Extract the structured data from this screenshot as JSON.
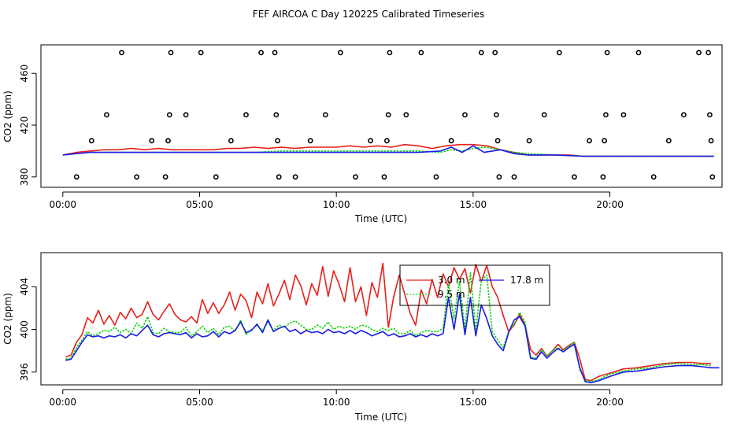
{
  "figure": {
    "title": "FEF AIRCOA C  Day 120225  Calibrated Timeseries"
  },
  "colors": {
    "red": "#e8201a",
    "green": "#0fd40f",
    "blue": "#1a1ae6",
    "axis": "#000000"
  },
  "chart_data": [
    {
      "type": "line",
      "id": "top",
      "title": "",
      "xlabel": "Time (UTC)",
      "ylabel": "CO2 (ppm)",
      "xlim": [
        -0.8,
        24.1
      ],
      "ylim": [
        372,
        482
      ],
      "xticks": [
        0,
        5,
        10,
        15,
        20
      ],
      "xtick_labels": [
        "00:00",
        "05:00",
        "10:00",
        "15:00",
        "20:00"
      ],
      "yticks": [
        380,
        420,
        460
      ],
      "ytick_labels": [
        "380",
        "420",
        "460"
      ],
      "series": [
        {
          "name": "red",
          "color": "red",
          "x": [
            0,
            0.5,
            1,
            1.5,
            2,
            2.5,
            3,
            3.5,
            4,
            4.5,
            5,
            5.5,
            6,
            6.5,
            7,
            7.5,
            8,
            8.5,
            9,
            9.5,
            10,
            10.5,
            11,
            11.5,
            12,
            12.5,
            13,
            13.5,
            14,
            14.5,
            15,
            15.5,
            16,
            16.5,
            17,
            17.5,
            18,
            18.5,
            19,
            19.5,
            20,
            21,
            22,
            23,
            23.8
          ],
          "y": [
            397,
            399,
            400,
            401,
            401,
            402,
            401,
            402,
            401,
            401,
            401,
            401,
            402,
            402,
            403,
            402,
            403,
            402,
            403,
            403,
            403,
            404,
            403,
            404,
            403,
            405,
            404,
            402,
            404,
            405,
            405,
            404,
            401,
            399,
            397,
            397,
            397,
            397,
            396,
            396,
            396,
            396,
            396,
            396,
            396
          ]
        },
        {
          "name": "green",
          "color": "green",
          "x": [
            0,
            0.5,
            1,
            2,
            3,
            4,
            5,
            6,
            7,
            8,
            9,
            10,
            11,
            12,
            13,
            13.8,
            14.2,
            14.6,
            15,
            15.4,
            16,
            16.5,
            17,
            18,
            19,
            20,
            21,
            22,
            23,
            23.8
          ],
          "y": [
            397,
            398,
            399,
            399,
            399,
            399,
            399,
            399,
            399,
            400,
            400,
            400,
            400,
            400,
            400,
            399,
            401,
            400,
            402,
            403,
            401,
            399,
            398,
            397,
            396,
            396,
            396,
            396,
            396,
            396
          ]
        },
        {
          "name": "blue",
          "color": "blue",
          "x": [
            0,
            0.5,
            1,
            2,
            3,
            4,
            5,
            6,
            7,
            8,
            9,
            10,
            11,
            12,
            13,
            13.8,
            14.2,
            14.6,
            15,
            15.4,
            16,
            16.5,
            17,
            18,
            19,
            20,
            21,
            22,
            23,
            23.8
          ],
          "y": [
            397,
            398,
            399,
            399,
            399,
            399,
            399,
            399,
            399,
            399,
            399,
            399,
            399,
            399,
            399,
            400,
            403,
            399,
            404,
            399,
            401,
            398,
            397,
            397,
            396,
            396,
            396,
            396,
            396,
            396
          ]
        }
      ],
      "scatter": {
        "name": "calibration points",
        "x": [
          0.5,
          1.05,
          1.6,
          2.15,
          2.7,
          3.25,
          3.75,
          3.85,
          3.9,
          3.95,
          4.5,
          5.05,
          5.6,
          6.15,
          6.7,
          7.25,
          7.75,
          7.8,
          7.85,
          7.9,
          8.5,
          9.05,
          9.6,
          10.15,
          10.7,
          11.25,
          11.75,
          11.85,
          11.9,
          11.95,
          12.55,
          13.1,
          13.65,
          14.2,
          14.7,
          15.3,
          15.8,
          15.85,
          15.9,
          15.95,
          16.5,
          17.05,
          17.6,
          18.15,
          18.7,
          19.25,
          19.75,
          19.8,
          19.85,
          19.9,
          20.5,
          21.05,
          21.6,
          22.15,
          22.7,
          23.25,
          23.6,
          23.65,
          23.7,
          23.75
        ],
        "y": [
          380,
          408,
          428,
          476,
          380,
          408,
          380,
          408,
          428,
          476,
          428,
          476,
          380,
          408,
          428,
          476,
          476,
          428,
          408,
          380,
          380,
          408,
          428,
          476,
          380,
          408,
          380,
          408,
          428,
          476,
          428,
          476,
          380,
          408,
          428,
          476,
          476,
          428,
          408,
          380,
          380,
          408,
          428,
          476,
          380,
          408,
          380,
          408,
          428,
          476,
          428,
          476,
          380,
          408,
          428,
          476,
          476,
          428,
          408,
          380
        ]
      }
    },
    {
      "type": "line",
      "id": "bottom",
      "title": "",
      "xlabel": "Time (UTC)",
      "ylabel": "CO2 (ppm)",
      "xlim": [
        -0.8,
        24.1
      ],
      "ylim": [
        394.8,
        407.2
      ],
      "xticks": [
        0,
        5,
        10,
        15,
        20
      ],
      "xtick_labels": [
        "00:00",
        "05:00",
        "10:00",
        "15:00",
        "20:00"
      ],
      "yticks": [
        396,
        400,
        404
      ],
      "ytick_labels": [
        "396",
        "400",
        "404"
      ],
      "legend": {
        "position": "top-right",
        "entries": [
          {
            "label": "3.0 m",
            "color": "red"
          },
          {
            "label": "9.5 m",
            "color": "green"
          },
          {
            "label": "17.8 m",
            "color": "blue"
          }
        ]
      },
      "series": [
        {
          "name": "3.0 m",
          "color": "red",
          "x": [
            0.1,
            0.3,
            0.5,
            0.7,
            0.9,
            1.1,
            1.3,
            1.5,
            1.7,
            1.9,
            2.1,
            2.3,
            2.5,
            2.7,
            2.9,
            3.1,
            3.3,
            3.5,
            3.7,
            3.9,
            4.1,
            4.3,
            4.5,
            4.7,
            4.9,
            5.1,
            5.3,
            5.5,
            5.7,
            5.9,
            6.1,
            6.3,
            6.5,
            6.7,
            6.9,
            7.1,
            7.3,
            7.5,
            7.7,
            7.9,
            8.1,
            8.3,
            8.5,
            8.7,
            8.9,
            9.1,
            9.3,
            9.5,
            9.7,
            9.9,
            10.1,
            10.3,
            10.5,
            10.7,
            10.9,
            11.1,
            11.3,
            11.5,
            11.7,
            11.9,
            12.1,
            12.3,
            12.5,
            12.7,
            12.9,
            13.1,
            13.3,
            13.5,
            13.7,
            13.9,
            14.1,
            14.3,
            14.5,
            14.7,
            14.9,
            15.1,
            15.3,
            15.5,
            15.7,
            15.9,
            16.1,
            16.3,
            16.5,
            16.7,
            16.9,
            17.1,
            17.3,
            17.5,
            17.7,
            17.9,
            18.1,
            18.3,
            18.5,
            18.7,
            18.9,
            19.1,
            19.3,
            19.6,
            20,
            20.5,
            21,
            21.5,
            22,
            22.5,
            23,
            23.4,
            23.7
          ],
          "y": [
            397.4,
            397.6,
            398.8,
            399.5,
            401.1,
            400.6,
            401.8,
            400.5,
            401.3,
            400.4,
            401.6,
            401.0,
            402.0,
            401.1,
            401.4,
            402.6,
            401.4,
            400.9,
            401.7,
            402.4,
            401.4,
            400.9,
            400.7,
            401.2,
            400.6,
            402.8,
            401.5,
            402.5,
            401.5,
            402.3,
            403.5,
            401.8,
            403.3,
            402.7,
            401.1,
            403.5,
            402.4,
            404.3,
            402.2,
            403.3,
            404.6,
            402.8,
            405.1,
            404.1,
            402.3,
            404.3,
            403.2,
            405.9,
            403.1,
            405.5,
            404.2,
            402.6,
            405.8,
            402.6,
            404.0,
            401.3,
            404.4,
            403.0,
            406.2,
            400.2,
            403.1,
            405.1,
            403.3,
            401.5,
            400.4,
            403.7,
            402.4,
            404.7,
            403.0,
            405.2,
            404.0,
            405.8,
            404.7,
            405.7,
            403.4,
            406.1,
            404.5,
            406.0,
            404.0,
            403.0,
            401.3,
            399.8,
            400.4,
            401.4,
            400.4,
            398.1,
            397.6,
            398.2,
            397.5,
            398.0,
            398.6,
            398.1,
            398.5,
            398.8,
            397.2,
            395.3,
            395.2,
            395.6,
            395.9,
            396.3,
            396.4,
            396.6,
            396.8,
            396.9,
            396.9,
            396.8,
            396.8
          ]
        },
        {
          "name": "9.5 m",
          "color": "green",
          "x": [
            0.1,
            0.3,
            0.5,
            0.7,
            0.9,
            1.1,
            1.3,
            1.5,
            1.7,
            1.9,
            2.1,
            2.3,
            2.5,
            2.7,
            2.9,
            3.1,
            3.3,
            3.5,
            3.7,
            3.9,
            4.1,
            4.3,
            4.5,
            4.7,
            4.9,
            5.1,
            5.3,
            5.5,
            5.7,
            5.9,
            6.1,
            6.3,
            6.5,
            6.7,
            6.9,
            7.1,
            7.3,
            7.5,
            7.7,
            7.9,
            8.1,
            8.3,
            8.5,
            8.7,
            8.9,
            9.1,
            9.3,
            9.5,
            9.7,
            9.9,
            10.1,
            10.3,
            10.5,
            10.7,
            10.9,
            11.1,
            11.3,
            11.5,
            11.7,
            11.9,
            12.1,
            12.3,
            12.5,
            12.7,
            12.9,
            13.1,
            13.3,
            13.5,
            13.7,
            13.9,
            14.1,
            14.3,
            14.5,
            14.7,
            14.9,
            15.1,
            15.3,
            15.5,
            15.7,
            15.9,
            16.1,
            16.3,
            16.5,
            16.7,
            16.9,
            17.1,
            17.3,
            17.5,
            17.7,
            17.9,
            18.1,
            18.3,
            18.5,
            18.7,
            18.9,
            19.1,
            19.3,
            19.6,
            20,
            20.5,
            21,
            21.5,
            22,
            22.5,
            23,
            23.4,
            23.7
          ],
          "y": [
            397.2,
            397.3,
            398.3,
            399.0,
            399.8,
            399.4,
            399.6,
            399.9,
            399.8,
            400.2,
            399.7,
            400.0,
            399.6,
            400.6,
            400.1,
            401.2,
            399.7,
            399.6,
            400.1,
            399.8,
            399.7,
            399.7,
            400.2,
            399.4,
            399.8,
            400.3,
            399.7,
            400.1,
            399.5,
            400.2,
            400.3,
            399.8,
            400.9,
            399.5,
            400.0,
            400.4,
            399.9,
            400.7,
            399.9,
            400.4,
            400.2,
            400.6,
            400.8,
            400.4,
            400.0,
            400.0,
            400.4,
            400.1,
            400.7,
            400.0,
            400.3,
            400.1,
            400.3,
            400.0,
            400.4,
            400.3,
            400.0,
            399.8,
            400.1,
            399.9,
            400.1,
            399.6,
            399.6,
            399.9,
            399.4,
            399.7,
            399.9,
            399.8,
            399.8,
            400.1,
            404.2,
            401.0,
            404.5,
            400.0,
            405.3,
            399.9,
            404.6,
            405.1,
            399.8,
            399.0,
            398.3,
            399.8,
            400.5,
            401.6,
            400.7,
            397.4,
            397.3,
            398.1,
            397.5,
            398.0,
            398.3,
            398.0,
            398.4,
            398.8,
            396.2,
            395.2,
            395.1,
            395.3,
            395.8,
            396.1,
            396.3,
            396.4,
            396.7,
            396.8,
            396.7,
            396.7,
            396.6
          ]
        },
        {
          "name": "17.8 m",
          "color": "blue",
          "x": [
            0.1,
            0.3,
            0.5,
            0.7,
            0.9,
            1.1,
            1.3,
            1.5,
            1.7,
            1.9,
            2.1,
            2.3,
            2.5,
            2.7,
            2.9,
            3.1,
            3.3,
            3.5,
            3.7,
            3.9,
            4.1,
            4.3,
            4.5,
            4.7,
            4.9,
            5.1,
            5.3,
            5.5,
            5.7,
            5.9,
            6.1,
            6.3,
            6.5,
            6.7,
            6.9,
            7.1,
            7.3,
            7.5,
            7.7,
            7.9,
            8.1,
            8.3,
            8.5,
            8.7,
            8.9,
            9.1,
            9.3,
            9.5,
            9.7,
            9.9,
            10.1,
            10.3,
            10.5,
            10.7,
            10.9,
            11.1,
            11.3,
            11.5,
            11.7,
            11.9,
            12.1,
            12.3,
            12.5,
            12.7,
            12.9,
            13.1,
            13.3,
            13.5,
            13.7,
            13.9,
            14.1,
            14.3,
            14.5,
            14.7,
            14.9,
            15.1,
            15.3,
            15.5,
            15.7,
            15.9,
            16.1,
            16.3,
            16.5,
            16.7,
            16.9,
            17.1,
            17.3,
            17.5,
            17.7,
            17.9,
            18.1,
            18.3,
            18.5,
            18.7,
            18.9,
            19.1,
            19.3,
            19.6,
            20,
            20.5,
            21,
            21.5,
            22,
            22.5,
            23,
            23.4,
            23.7,
            24.0
          ],
          "y": [
            397.1,
            397.2,
            398.0,
            398.8,
            399.5,
            399.3,
            399.4,
            399.2,
            399.4,
            399.3,
            399.5,
            399.2,
            399.6,
            399.4,
            399.9,
            400.4,
            399.5,
            399.3,
            399.6,
            399.7,
            399.6,
            399.5,
            399.7,
            399.2,
            399.6,
            399.3,
            399.4,
            399.8,
            399.3,
            399.8,
            399.6,
            399.9,
            400.7,
            399.7,
            399.9,
            400.5,
            399.7,
            400.9,
            399.8,
            400.1,
            400.3,
            399.8,
            400.0,
            399.6,
            399.9,
            399.7,
            399.8,
            399.6,
            400.0,
            399.7,
            399.8,
            399.6,
            399.9,
            399.6,
            399.9,
            399.7,
            399.4,
            399.6,
            399.8,
            399.4,
            399.6,
            399.3,
            399.4,
            399.6,
            399.3,
            399.5,
            399.3,
            399.6,
            399.4,
            399.6,
            403.0,
            400.0,
            403.3,
            399.5,
            403.0,
            399.4,
            402.3,
            401.0,
            399.4,
            398.6,
            398.0,
            399.7,
            400.9,
            401.2,
            400.3,
            397.3,
            397.2,
            397.9,
            397.3,
            397.8,
            398.2,
            397.9,
            398.3,
            398.6,
            396.4,
            395.1,
            395.0,
            395.2,
            395.6,
            396.0,
            396.1,
            396.3,
            396.5,
            396.6,
            396.6,
            396.5,
            396.4,
            396.4
          ]
        }
      ]
    }
  ]
}
